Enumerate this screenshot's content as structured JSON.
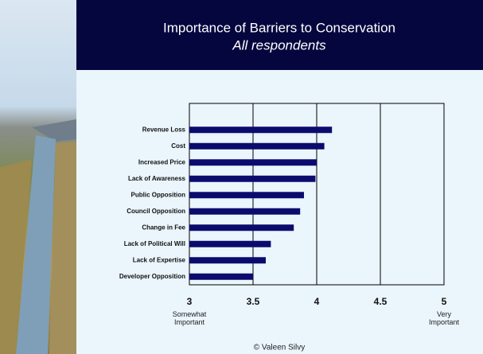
{
  "chart_data": {
    "type": "hbar",
    "title": "Importance of Barriers to Conservation",
    "subtitle": "All respondents",
    "categories": [
      "Revenue Loss",
      "Cost",
      "Increased Price",
      "Lack of Awareness",
      "Public Opposition",
      "Council Opposition",
      "Change in Fee",
      "Lack of Political Will",
      "Lack of Expertise",
      "Developer Opposition"
    ],
    "values": [
      4.12,
      4.06,
      4.0,
      3.99,
      3.9,
      3.87,
      3.82,
      3.64,
      3.6,
      3.5
    ],
    "color": "#0b0b6e",
    "xlim": [
      3,
      5
    ],
    "xticks": [
      3,
      3.5,
      4,
      4.5,
      5
    ],
    "grid": true,
    "low_anchor_label": "Somewhat Important",
    "high_anchor_label": "Very Important",
    "footer": "© Valeen Silvy"
  }
}
